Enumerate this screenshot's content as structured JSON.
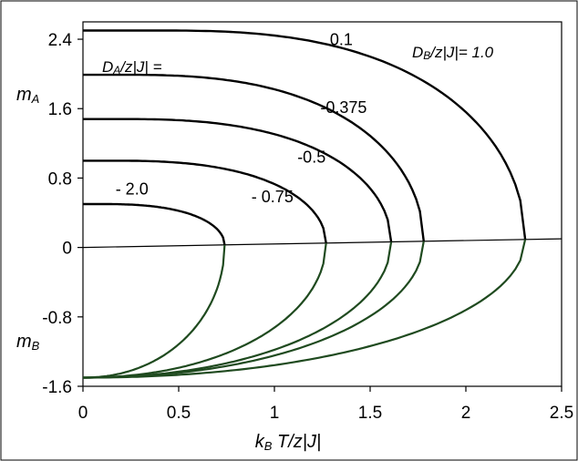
{
  "chart_data": {
    "type": "line",
    "title": "",
    "xlabel": "k_B T/z|J|",
    "xlabel_main": "k",
    "xlabel_sub": "B",
    "xlabel_rest": " T/z|J|",
    "ylabel_upper": "m",
    "ylabel_upper_sub": "A",
    "ylabel_lower": "m",
    "ylabel_lower_sub": "B",
    "xlim": [
      0,
      2.5
    ],
    "ylim": [
      -1.6,
      2.6
    ],
    "xticks": [
      0,
      0.5,
      1,
      1.5,
      2,
      2.5
    ],
    "xtick_labels": [
      "0",
      "0.5",
      "1",
      "1.5",
      "2",
      "2.5"
    ],
    "yticks": [
      2.4,
      1.6,
      0.8,
      0,
      -0.8,
      -1.6
    ],
    "ytick_labels": [
      "2.4",
      "1.6",
      "0.8",
      "0",
      "-0.8",
      "-1.6"
    ],
    "annotation_left": "D_A/z|J| =",
    "annotation_left_parts": [
      "D",
      "A",
      "/z|J| ="
    ],
    "annotation_right": "D_B/z|J|= 1.0",
    "annotation_right_parts": [
      "D",
      "B",
      "/z|J|= 1.0"
    ],
    "grid": false,
    "upper_color": "#000000",
    "lower_color": "#1f4a1f",
    "baseline": {
      "x": [
        0,
        2.5
      ],
      "y": [
        0.0,
        0.1
      ]
    },
    "series": [
      {
        "name": "0.1",
        "tc": 2.31,
        "upper_y0": 2.5,
        "lower_y0": -1.5,
        "upper_tail_start": 0.18
      },
      {
        "name": "-0.375",
        "tc": 1.78,
        "upper_y0": 1.99,
        "lower_y0": -1.5,
        "upper_tail_start": 0.12
      },
      {
        "name": "-0.5",
        "tc": 1.61,
        "upper_y0": 1.48,
        "lower_y0": -1.5,
        "upper_tail_start": 0.12
      },
      {
        "name": "- 0.75",
        "tc": 1.27,
        "upper_y0": 1.0,
        "lower_y0": -1.5,
        "upper_tail_start": 0.12
      },
      {
        "name": "- 2.0",
        "tc": 0.74,
        "upper_y0": 0.5,
        "lower_y0": -1.5,
        "upper_tail_start": 0.12
      }
    ]
  }
}
